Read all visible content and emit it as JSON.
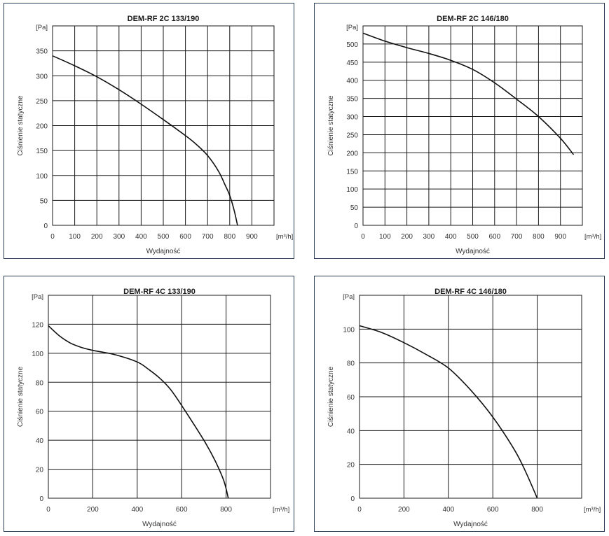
{
  "chart_data": [
    {
      "type": "line",
      "title": "DEM-RF 2C 133/190",
      "xlabel": "Wydajność",
      "ylabel": "Ciśnienie statyczne",
      "x_unit": "[m³/h]",
      "y_unit": "[Pa]",
      "xlim": [
        0,
        1000
      ],
      "ylim": [
        0,
        400
      ],
      "x_ticks": [
        "0",
        "100",
        "200",
        "300",
        "400",
        "500",
        "600",
        "700",
        "800",
        "900"
      ],
      "y_ticks": [
        "0",
        "50",
        "100",
        "150",
        "200",
        "250",
        "300",
        "350"
      ],
      "grid": true,
      "series": [
        {
          "x": [
            0,
            100,
            200,
            300,
            400,
            500,
            600,
            650,
            700,
            750,
            780,
            800,
            820,
            835
          ],
          "y": [
            340,
            320,
            298,
            272,
            243,
            212,
            180,
            162,
            140,
            108,
            80,
            60,
            30,
            0
          ]
        }
      ]
    },
    {
      "type": "line",
      "title": "DEM-RF 2C 146/180",
      "xlabel": "Wydajność",
      "ylabel": "Ciśnienie statyczne",
      "x_unit": "[m³/h]",
      "y_unit": "[Pa]",
      "xlim": [
        0,
        1000
      ],
      "ylim": [
        0,
        550
      ],
      "x_ticks": [
        "0",
        "100",
        "200",
        "300",
        "400",
        "500",
        "600",
        "700",
        "800",
        "900"
      ],
      "y_ticks": [
        "0",
        "50",
        "100",
        "150",
        "200",
        "250",
        "300",
        "350",
        "400",
        "450",
        "500"
      ],
      "grid": true,
      "series": [
        {
          "x": [
            0,
            100,
            200,
            300,
            400,
            500,
            600,
            700,
            800,
            900,
            960
          ],
          "y": [
            530,
            508,
            490,
            474,
            455,
            430,
            393,
            348,
            300,
            240,
            195
          ]
        }
      ]
    },
    {
      "type": "line",
      "title": "DEM-RF 4C 133/190",
      "xlabel": "Wydajność",
      "ylabel": "Ciśnienie statyczne",
      "x_unit": "[m³/h]",
      "y_unit": "[Pa]",
      "xlim": [
        0,
        1000
      ],
      "ylim": [
        0,
        140
      ],
      "x_ticks": [
        "0",
        "200",
        "400",
        "600",
        "800"
      ],
      "y_ticks": [
        "0",
        "20",
        "40",
        "60",
        "80",
        "100",
        "120"
      ],
      "grid": true,
      "series": [
        {
          "x": [
            0,
            50,
            100,
            150,
            200,
            300,
            400,
            450,
            500,
            550,
            600,
            700,
            750,
            790,
            810
          ],
          "y": [
            119,
            112,
            107,
            104,
            102,
            99,
            94,
            89,
            83,
            75,
            64,
            40,
            26,
            12,
            0
          ]
        }
      ]
    },
    {
      "type": "line",
      "title": "DEM-RF 4C 146/180",
      "xlabel": "Wydajność",
      "ylabel": "Ciśnienie statyczne",
      "x_unit": "[m³/h]",
      "y_unit": "[Pa]",
      "xlim": [
        0,
        1000
      ],
      "ylim": [
        0,
        120
      ],
      "x_ticks": [
        "0",
        "200",
        "400",
        "600",
        "800"
      ],
      "y_ticks": [
        "0",
        "20",
        "40",
        "60",
        "80",
        "100"
      ],
      "grid": true,
      "series": [
        {
          "x": [
            0,
            100,
            200,
            300,
            400,
            500,
            600,
            700,
            750,
            800
          ],
          "y": [
            102,
            98,
            92,
            85,
            77,
            64,
            48,
            28,
            15,
            0
          ]
        }
      ]
    }
  ]
}
